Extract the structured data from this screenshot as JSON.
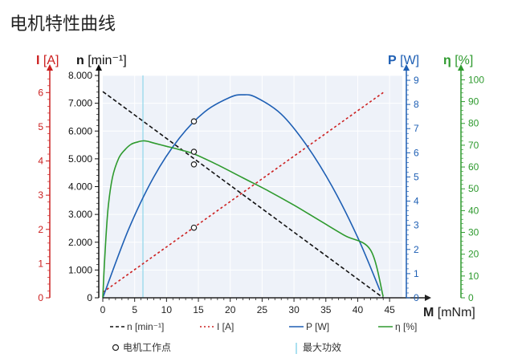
{
  "title": "电机特性曲线",
  "colors": {
    "n": "#111111",
    "I": "#cc2020",
    "P": "#1e5fb4",
    "eta": "#2e9a2e",
    "plot_bg": "#eef2f9",
    "grid": "#ffffff",
    "max_eff": "#8fd6ea",
    "axis": "#222222"
  },
  "chart_data": {
    "type": "line",
    "x": {
      "label_symbol": "M",
      "label_unit": "[mNm]",
      "ticks": [
        "0",
        "5",
        "10",
        "15",
        "20",
        "25",
        "30",
        "35",
        "40",
        "45"
      ],
      "range": [
        0,
        47
      ]
    },
    "axes": {
      "n": {
        "symbol": "n",
        "unit": "[min⁻¹]",
        "range": [
          0,
          8000
        ],
        "ticks": [
          "0",
          "1.000",
          "2.000",
          "3.000",
          "4.000",
          "5.000",
          "6.000",
          "7.000",
          "8.000"
        ]
      },
      "I": {
        "symbol": "I",
        "unit": "[A]",
        "range": [
          0,
          6.5
        ],
        "ticks": [
          "0",
          "1",
          "2",
          "3",
          "4",
          "5",
          "6"
        ]
      },
      "P": {
        "symbol": "P",
        "unit": "[W]",
        "range": [
          0,
          9.2
        ],
        "ticks": [
          "0",
          "1",
          "2",
          "3",
          "4",
          "5",
          "6",
          "7",
          "8",
          "9"
        ]
      },
      "eta": {
        "symbol": "η",
        "unit": "[%]",
        "range": [
          0,
          102
        ],
        "ticks": [
          "0",
          "10",
          "20",
          "30",
          "40",
          "50",
          "60",
          "70",
          "80",
          "90",
          "100"
        ]
      }
    },
    "series": [
      {
        "name": "n [min⁻¹]",
        "axis": "n",
        "style": "dashed",
        "x": [
          0,
          44
        ],
        "y": [
          7420,
          0
        ]
      },
      {
        "name": "I [A]",
        "axis": "I",
        "style": "dotted",
        "x": [
          0,
          44
        ],
        "y": [
          0.16,
          6.0
        ]
      },
      {
        "name": "P [W]",
        "axis": "P",
        "style": "solid",
        "x": [
          0,
          4,
          8,
          12,
          16,
          20,
          22,
          24,
          28,
          32,
          36,
          40,
          43.5
        ],
        "y": [
          0,
          2.8,
          5.0,
          6.6,
          7.7,
          8.3,
          8.4,
          8.3,
          7.6,
          6.3,
          4.6,
          2.5,
          0.3
        ]
      },
      {
        "name": "η [%]",
        "axis": "eta",
        "style": "solid",
        "x": [
          0,
          0.3,
          0.8,
          1.5,
          2.5,
          3.5,
          4.5,
          5.5,
          6.3,
          7,
          8,
          10,
          12,
          14.3,
          18,
          22,
          26,
          30,
          34,
          38,
          42,
          44
        ],
        "y": [
          0,
          18,
          40,
          55,
          64,
          68,
          70.5,
          71.5,
          72,
          71.8,
          71,
          69.5,
          68,
          66,
          61,
          55,
          49,
          42.5,
          35.5,
          28.5,
          22,
          0.5
        ]
      }
    ],
    "operating_point": {
      "label": "电机工作点",
      "x": 14.3,
      "markers": [
        {
          "axis": "P",
          "y": 7.3
        },
        {
          "axis": "eta",
          "y": 67
        },
        {
          "axis": "n",
          "y": 4800
        },
        {
          "axis": "I",
          "y": 2.05
        }
      ]
    },
    "max_efficiency": {
      "label": "最大功效",
      "x": 6.3
    },
    "grid": true
  }
}
